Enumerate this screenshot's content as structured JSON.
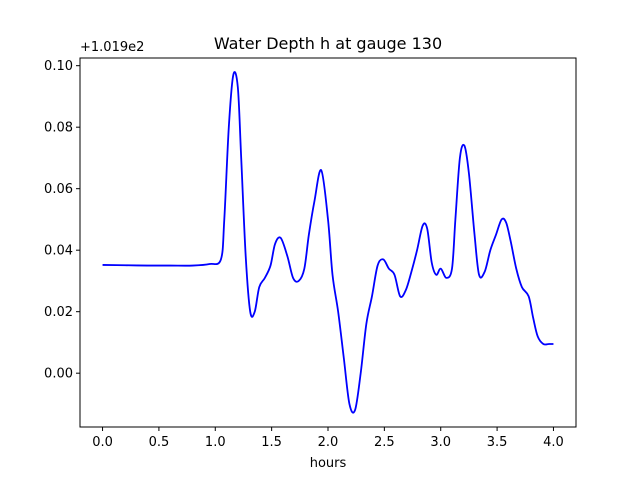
{
  "chart_data": {
    "type": "line",
    "title": "Water Depth h at gauge 130",
    "xlabel": "hours",
    "ylabel": "",
    "y_offset_label": "+1.019e2",
    "xlim": [
      -0.2,
      4.2
    ],
    "ylim": [
      -0.0175,
      0.1025
    ],
    "x_ticks": [
      0.0,
      0.5,
      1.0,
      1.5,
      2.0,
      2.5,
      3.0,
      3.5,
      4.0
    ],
    "x_tick_labels": [
      "0.0",
      "0.5",
      "1.0",
      "1.5",
      "2.0",
      "2.5",
      "3.0",
      "3.5",
      "4.0"
    ],
    "y_ticks": [
      0.0,
      0.02,
      0.04,
      0.06,
      0.08,
      0.1
    ],
    "y_tick_labels": [
      "0.00",
      "0.02",
      "0.04",
      "0.06",
      "0.08",
      "0.10"
    ],
    "grid": false,
    "series": [
      {
        "color": "#0000ff",
        "x": [
          0.0,
          0.2,
          0.4,
          0.6,
          0.8,
          0.95,
          1.05,
          1.08,
          1.12,
          1.16,
          1.2,
          1.23,
          1.27,
          1.31,
          1.35,
          1.39,
          1.44,
          1.49,
          1.53,
          1.58,
          1.64,
          1.69,
          1.74,
          1.79,
          1.83,
          1.88,
          1.94,
          2.0,
          2.04,
          2.09,
          2.14,
          2.19,
          2.24,
          2.29,
          2.34,
          2.39,
          2.44,
          2.49,
          2.54,
          2.59,
          2.64,
          2.69,
          2.74,
          2.79,
          2.84,
          2.88,
          2.92,
          2.96,
          3.0,
          3.05,
          3.1,
          3.13,
          3.17,
          3.21,
          3.25,
          3.3,
          3.34,
          3.39,
          3.44,
          3.49,
          3.54,
          3.58,
          3.62,
          3.67,
          3.72,
          3.78,
          3.82,
          3.86,
          3.91,
          3.96,
          4.0
        ],
        "y": [
          0.0352,
          0.0351,
          0.035,
          0.035,
          0.035,
          0.0355,
          0.037,
          0.05,
          0.08,
          0.097,
          0.093,
          0.07,
          0.038,
          0.02,
          0.02,
          0.028,
          0.031,
          0.035,
          0.042,
          0.044,
          0.038,
          0.031,
          0.03,
          0.034,
          0.045,
          0.056,
          0.066,
          0.05,
          0.032,
          0.02,
          0.005,
          -0.01,
          -0.012,
          0.0,
          0.016,
          0.025,
          0.035,
          0.037,
          0.034,
          0.032,
          0.025,
          0.027,
          0.033,
          0.04,
          0.048,
          0.047,
          0.036,
          0.032,
          0.034,
          0.031,
          0.034,
          0.05,
          0.07,
          0.074,
          0.065,
          0.045,
          0.032,
          0.033,
          0.04,
          0.045,
          0.05,
          0.049,
          0.043,
          0.034,
          0.028,
          0.025,
          0.018,
          0.012,
          0.0095,
          0.0095,
          0.0095
        ]
      }
    ]
  }
}
